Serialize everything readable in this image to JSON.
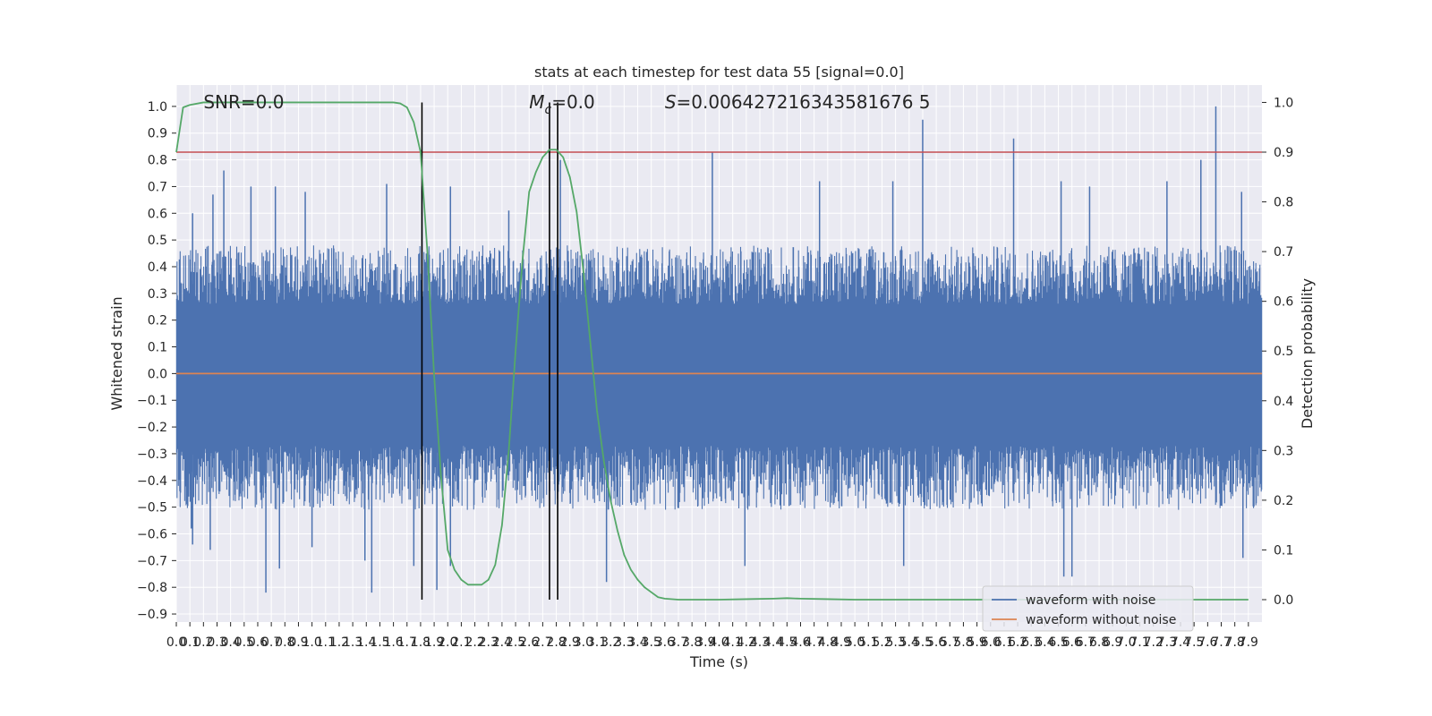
{
  "chart_data": {
    "type": "line",
    "title": "stats at each timestep for test data 55 [signal=0.0]",
    "xlabel": "Time (s)",
    "ylabel_left": "Whitened strain",
    "ylabel_right": "Detection probability",
    "xlim": [
      0.0,
      8.0
    ],
    "ylim_left": [
      -0.93,
      1.08
    ],
    "ylim_right": [
      -0.045,
      1.035
    ],
    "x_ticks": [
      0.0,
      0.1,
      0.2,
      0.3,
      0.4,
      0.5,
      0.6,
      0.7,
      0.8,
      0.9,
      1.0,
      1.1,
      1.2,
      1.3,
      1.4,
      1.5,
      1.6,
      1.7,
      1.8,
      1.9,
      2.0,
      2.1,
      2.2,
      2.3,
      2.4,
      2.5,
      2.6,
      2.7,
      2.8,
      2.9,
      3.0,
      3.1,
      3.2,
      3.3,
      3.4,
      3.5,
      3.6,
      3.7,
      3.8,
      3.9,
      4.0,
      4.1,
      4.2,
      4.3,
      4.4,
      4.5,
      4.6,
      4.7,
      4.8,
      4.9,
      5.0,
      5.1,
      5.2,
      5.3,
      5.4,
      5.5,
      5.6,
      5.7,
      5.8,
      5.9,
      6.0,
      6.1,
      6.2,
      6.3,
      6.4,
      6.5,
      6.6,
      6.7,
      6.8,
      6.9,
      7.0,
      7.1,
      7.2,
      7.3,
      7.4,
      7.5,
      7.6,
      7.7,
      7.8,
      7.9
    ],
    "y_ticks_left": [
      -0.9,
      -0.8,
      -0.7,
      -0.6,
      -0.5,
      -0.4,
      -0.3,
      -0.2,
      -0.1,
      0.0,
      0.1,
      0.2,
      0.3,
      0.4,
      0.5,
      0.6,
      0.7,
      0.8,
      0.9,
      1.0
    ],
    "y_ticks_right": [
      0.0,
      0.1,
      0.2,
      0.3,
      0.4,
      0.5,
      0.6,
      0.7,
      0.8,
      0.9,
      1.0
    ],
    "grid": true,
    "legend_position": "lower-right",
    "annotations": {
      "snr": "SNR=0.0",
      "mc_symbol": "M",
      "mc_subscript": "c",
      "mc_value": "=0.0",
      "s_symbol": "S",
      "s_value": "=0.006427216343581676 5"
    },
    "series": [
      {
        "name": "waveform with noise",
        "color": "#4c72b0",
        "axis": "left",
        "style": "noise",
        "sample_count": 2400,
        "peak_spikes": [
          {
            "x": 0.12,
            "y": 0.6
          },
          {
            "x": 0.27,
            "y": 0.67
          },
          {
            "x": 0.35,
            "y": 0.76
          },
          {
            "x": 0.55,
            "y": 0.7
          },
          {
            "x": 0.73,
            "y": 0.7
          },
          {
            "x": 0.95,
            "y": 0.68
          },
          {
            "x": 1.55,
            "y": 0.71
          },
          {
            "x": 1.81,
            "y": 0.7
          },
          {
            "x": 2.02,
            "y": 0.7
          },
          {
            "x": 2.45,
            "y": 0.61
          },
          {
            "x": 2.83,
            "y": 0.8
          },
          {
            "x": 3.95,
            "y": 0.83
          },
          {
            "x": 4.74,
            "y": 0.72
          },
          {
            "x": 5.28,
            "y": 0.72
          },
          {
            "x": 5.5,
            "y": 0.95
          },
          {
            "x": 6.17,
            "y": 0.88
          },
          {
            "x": 6.52,
            "y": 0.72
          },
          {
            "x": 6.73,
            "y": 0.7
          },
          {
            "x": 7.3,
            "y": 0.72
          },
          {
            "x": 7.55,
            "y": 0.8
          },
          {
            "x": 7.66,
            "y": 1.0
          },
          {
            "x": 7.85,
            "y": 0.68
          }
        ],
        "trough_spikes": [
          {
            "x": 0.11,
            "y": -0.58
          },
          {
            "x": 0.12,
            "y": -0.64
          },
          {
            "x": 0.25,
            "y": -0.66
          },
          {
            "x": 0.66,
            "y": -0.82
          },
          {
            "x": 0.76,
            "y": -0.73
          },
          {
            "x": 1.0,
            "y": -0.65
          },
          {
            "x": 1.39,
            "y": -0.7
          },
          {
            "x": 1.44,
            "y": -0.82
          },
          {
            "x": 1.75,
            "y": -0.72
          },
          {
            "x": 1.92,
            "y": -0.81
          },
          {
            "x": 2.02,
            "y": -0.72
          },
          {
            "x": 3.17,
            "y": -0.78
          },
          {
            "x": 4.19,
            "y": -0.72
          },
          {
            "x": 5.36,
            "y": -0.72
          },
          {
            "x": 6.54,
            "y": -0.76
          },
          {
            "x": 6.6,
            "y": -0.76
          },
          {
            "x": 7.86,
            "y": -0.69
          }
        ]
      },
      {
        "name": "waveform without noise",
        "color": "#dd8452",
        "axis": "left",
        "style": "line",
        "x": [
          0.0,
          8.0
        ],
        "values": [
          0.0,
          0.0
        ]
      },
      {
        "color": "#55a868",
        "axis": "right",
        "style": "line",
        "x": [
          0.0,
          0.05,
          0.1,
          0.2,
          0.3,
          0.5,
          1.0,
          1.5,
          1.6,
          1.65,
          1.7,
          1.75,
          1.8,
          1.85,
          1.9,
          1.95,
          2.0,
          2.05,
          2.1,
          2.15,
          2.2,
          2.25,
          2.3,
          2.35,
          2.4,
          2.45,
          2.5,
          2.55,
          2.6,
          2.65,
          2.7,
          2.75,
          2.8,
          2.85,
          2.9,
          2.95,
          3.0,
          3.05,
          3.1,
          3.15,
          3.2,
          3.25,
          3.3,
          3.35,
          3.4,
          3.45,
          3.5,
          3.55,
          3.6,
          3.7,
          3.8,
          4.0,
          4.2,
          4.4,
          4.5,
          4.6,
          4.8,
          5.0,
          6.0,
          7.0,
          7.9
        ],
        "values": [
          0.9,
          0.99,
          0.995,
          1.0,
          1.0,
          1.0,
          1.0,
          1.0,
          1.0,
          0.998,
          0.99,
          0.96,
          0.9,
          0.7,
          0.45,
          0.25,
          0.1,
          0.06,
          0.04,
          0.03,
          0.03,
          0.03,
          0.04,
          0.07,
          0.15,
          0.3,
          0.5,
          0.68,
          0.82,
          0.86,
          0.89,
          0.905,
          0.905,
          0.89,
          0.85,
          0.78,
          0.66,
          0.52,
          0.38,
          0.28,
          0.2,
          0.14,
          0.09,
          0.06,
          0.04,
          0.025,
          0.015,
          0.005,
          0.002,
          0.0,
          0.0,
          0.0,
          0.001,
          0.002,
          0.003,
          0.002,
          0.001,
          0.0,
          0.0,
          0.0,
          0.0
        ]
      }
    ],
    "hlines": [
      {
        "axis": "right",
        "y": 0.9,
        "color": "#c44e52"
      }
    ],
    "vlines": [
      {
        "x": 1.81,
        "color": "#000000",
        "axis": "right",
        "ymin": 0.0,
        "ymax": 1.0
      },
      {
        "x": 2.75,
        "color": "#000000",
        "axis": "right",
        "ymin": 0.0,
        "ymax": 1.0
      },
      {
        "x": 2.81,
        "color": "#000000",
        "axis": "right",
        "ymin": 0.0,
        "ymax": 1.0
      }
    ]
  }
}
